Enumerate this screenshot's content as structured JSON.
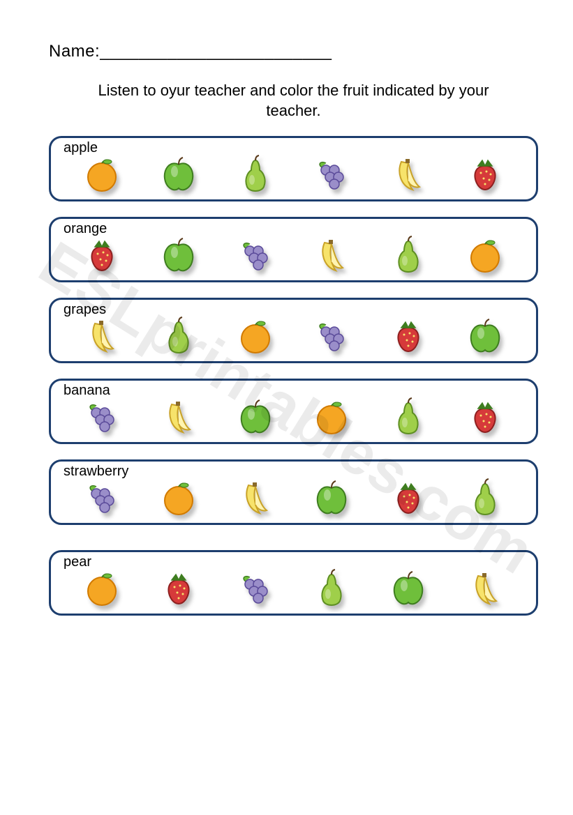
{
  "nameLabel": "Name:________________________",
  "instructions": "Listen to oyur teacher and color the fruit indicated by your teacher.",
  "watermark": "ESLprintables.com",
  "colors": {
    "border": "#1d3e6e",
    "orange_fill": "#f5a623",
    "orange_stroke": "#d17a00",
    "apple_fill": "#6fbf3b",
    "apple_stroke": "#3e7d1f",
    "pear_fill": "#9fcf4a",
    "pear_stroke": "#5e8f22",
    "grape_fill": "#9a8ec9",
    "grape_stroke": "#5a4a99",
    "grape_leaf": "#6fbf3b",
    "banana_fill": "#f7e36b",
    "banana_stroke": "#c9a227",
    "strawberry_fill": "#d63a3a",
    "strawberry_stroke": "#8e1f1f",
    "strawberry_leaf": "#3e7d1f"
  },
  "rows": [
    {
      "label": "apple",
      "fruits": [
        "orange",
        "apple",
        "pear",
        "grapes",
        "banana",
        "strawberry"
      ]
    },
    {
      "label": "orange",
      "fruits": [
        "strawberry",
        "apple",
        "grapes",
        "banana",
        "pear",
        "orange"
      ]
    },
    {
      "label": "grapes",
      "fruits": [
        "banana",
        "pear",
        "orange",
        "grapes",
        "strawberry",
        "apple"
      ]
    },
    {
      "label": "banana",
      "fruits": [
        "grapes",
        "banana",
        "apple",
        "orange",
        "pear",
        "strawberry"
      ]
    },
    {
      "label": "strawberry",
      "fruits": [
        "grapes",
        "orange",
        "banana",
        "apple",
        "strawberry",
        "pear"
      ]
    },
    {
      "label": "pear",
      "fruits": [
        "orange",
        "strawberry",
        "grapes",
        "pear",
        "apple",
        "banana"
      ]
    }
  ]
}
